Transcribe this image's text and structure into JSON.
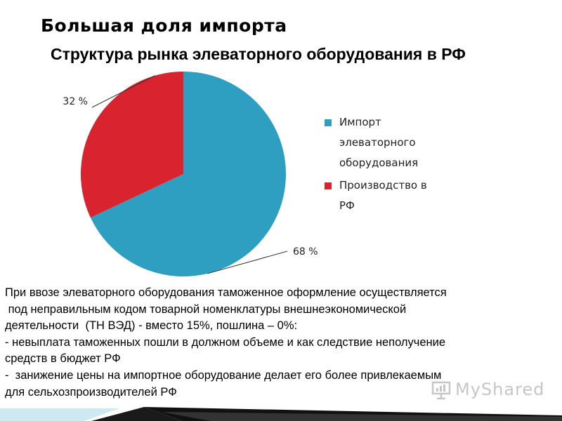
{
  "slide": {
    "title": "Большая доля импорта"
  },
  "chart_data": {
    "type": "pie",
    "title": "Структура рынка элеваторного оборудования в РФ",
    "slices": [
      {
        "name": "Импорт элеваторного оборудования",
        "value": 68,
        "label": "68 %",
        "color": "#2e9fc0"
      },
      {
        "name": "Производство в РФ",
        "value": 32,
        "label": "32 %",
        "color": "#d9232e"
      }
    ],
    "start_angle_deg": 0,
    "direction": "clockwise",
    "legend_position": "right"
  },
  "legend": {
    "items": [
      {
        "lines": [
          "Импорт",
          "элеваторного",
          "оборудования"
        ],
        "color": "#2e9fc0"
      },
      {
        "lines": [
          "Производство в",
          "РФ"
        ],
        "color": "#d9232e"
      }
    ]
  },
  "body": {
    "lines": [
      "При ввозе элеваторного оборудования таможенное оформление осуществляется",
      " под неправильным кодом товарной номенклатуры внешнеэкономической",
      "деятельности  (ТН ВЭД) - вместо 15%, пошлина – 0%:",
      "- невыплата таможенных пошли в должном объеме и как следствие неполучение",
      "средств в бюджет РФ",
      "-  занижение цены на импортное оборудование делает его более привлекаемым",
      "для сельхозпроизводителей РФ"
    ]
  },
  "watermark": {
    "text": "MyShared",
    "icon": "presentation-board-icon"
  }
}
